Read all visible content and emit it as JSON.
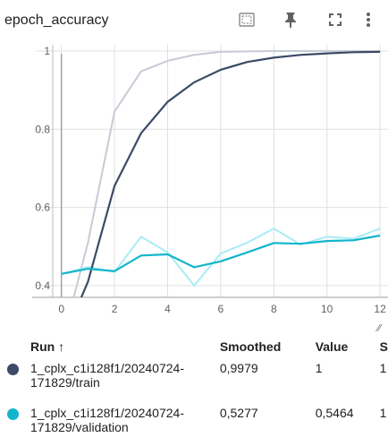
{
  "card": {
    "title": "epoch_accuracy",
    "toolbar": [
      "fit-domain-icon",
      "pin-icon",
      "fullscreen-icon",
      "more-vert-icon"
    ]
  },
  "table": {
    "headers": {
      "run": "Run",
      "sort_arrow": "↑",
      "smoothed": "Smoothed",
      "value": "Value",
      "step": "S"
    },
    "rows": [
      {
        "run": "1_cplx_c1i128f1/20240724-171829/train",
        "smoothed": "0,9979",
        "value": "1",
        "step": "1",
        "color": "#3b4a66"
      },
      {
        "run": "1_cplx_c1i128f1/20240724-171829/validation",
        "smoothed": "0,5277",
        "value": "0,5464",
        "step": "1",
        "color": "#12b5cb"
      }
    ]
  },
  "chart_data": {
    "type": "line",
    "x_ticks": [
      "0",
      "2",
      "4",
      "6",
      "8",
      "10",
      "12"
    ],
    "y_ticks": [
      "1",
      "0.8",
      "0.6",
      "0.4"
    ],
    "xlim": [
      -1.1,
      12.3
    ],
    "ylim": [
      0.37,
      1.016
    ],
    "grid": true,
    "series": [
      {
        "name": "1_cplx_c1i128f1/20240724-171829/train",
        "color": "#3b4a66",
        "raw_color": "#c7cbd6",
        "x": [
          0,
          1,
          2,
          3,
          4,
          5,
          6,
          7,
          8,
          9,
          10,
          11,
          12
        ],
        "raw": [
          0.25,
          0.51,
          0.845,
          0.948,
          0.975,
          0.99,
          0.998,
          0.999,
          1.0,
          1.0,
          1.0,
          1.0,
          1.0
        ],
        "smoothed": [
          0.25,
          0.41,
          0.655,
          0.79,
          0.87,
          0.92,
          0.952,
          0.972,
          0.983,
          0.99,
          0.994,
          0.997,
          0.998
        ]
      },
      {
        "name": "1_cplx_c1i128f1/20240724-171829/validation",
        "color": "#12b5cb",
        "raw_color": "#a8ecf4",
        "x": [
          0,
          1,
          2,
          3,
          4,
          5,
          6,
          7,
          8,
          9,
          10,
          11,
          12
        ],
        "raw": [
          0.43,
          0.448,
          0.435,
          0.525,
          0.485,
          0.4,
          0.482,
          0.51,
          0.546,
          0.505,
          0.525,
          0.52,
          0.546
        ],
        "smoothed": [
          0.43,
          0.443,
          0.437,
          0.477,
          0.48,
          0.447,
          0.462,
          0.485,
          0.509,
          0.507,
          0.514,
          0.516,
          0.528
        ]
      }
    ]
  }
}
